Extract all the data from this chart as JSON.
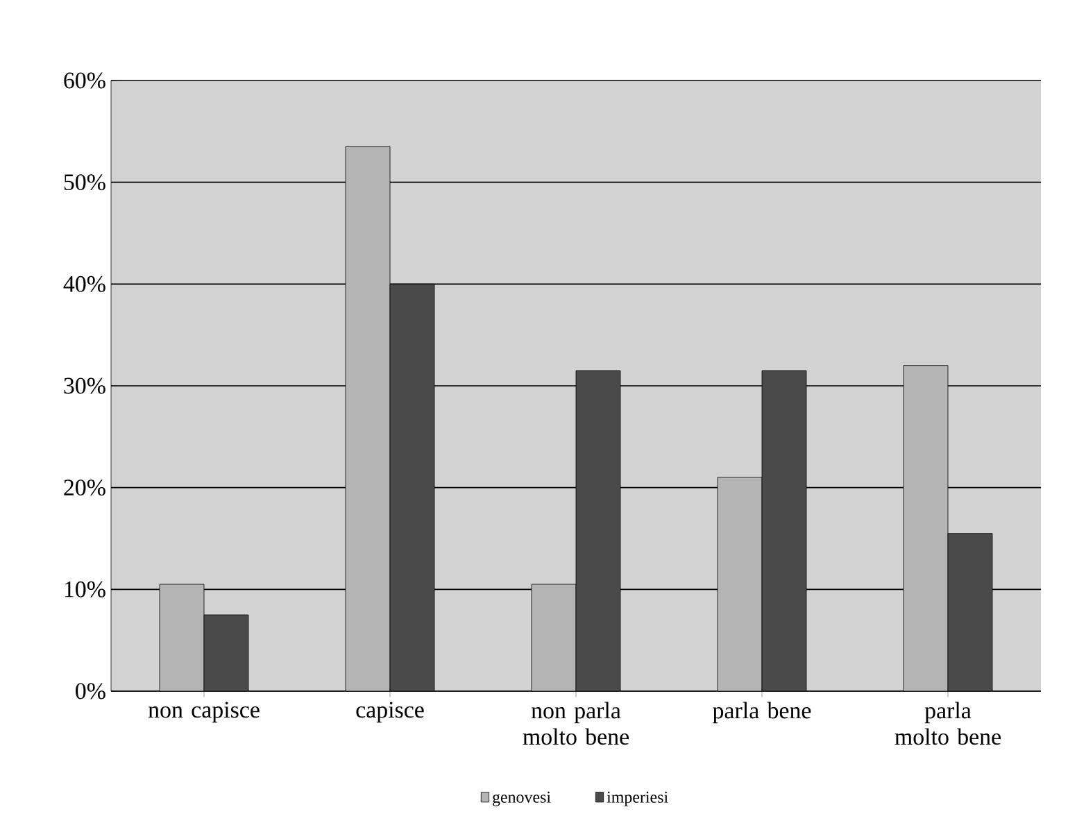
{
  "chart_data": {
    "type": "bar",
    "categories": [
      "non capisce",
      "capisce",
      "non parla molto bene",
      "parla bene",
      "parla molto bene"
    ],
    "series": [
      {
        "name": "genovesi",
        "color": "#b4b4b4",
        "values": [
          10.5,
          53.5,
          10.5,
          21,
          32
        ]
      },
      {
        "name": "imperiesi",
        "color": "#4a4a4a",
        "values": [
          7.5,
          40,
          31.5,
          31.5,
          15.5
        ]
      }
    ],
    "ylim": [
      0,
      60
    ],
    "yticks": [
      {
        "value": 0,
        "label": "0%"
      },
      {
        "value": 10,
        "label": "10%"
      },
      {
        "value": 20,
        "label": "20%"
      },
      {
        "value": 30,
        "label": "30%"
      },
      {
        "value": 40,
        "label": "40%"
      },
      {
        "value": 50,
        "label": "50%"
      },
      {
        "value": 60,
        "label": "60%"
      }
    ],
    "grid": "y",
    "legend": "bottom"
  }
}
